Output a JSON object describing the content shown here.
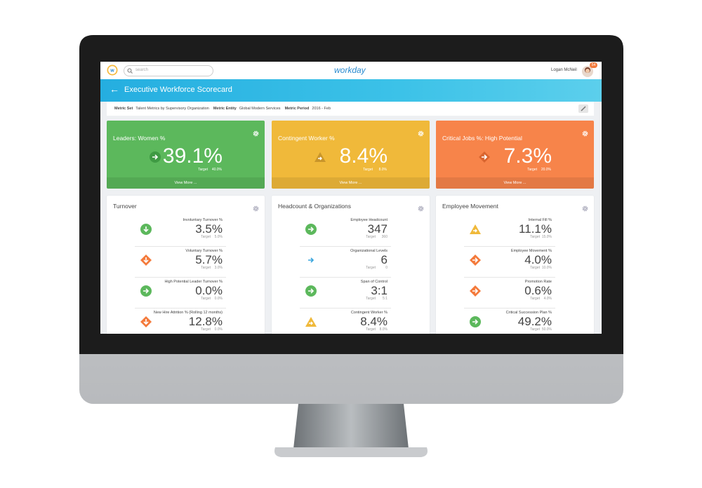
{
  "header": {
    "search_placeholder": "search",
    "logo": "workday",
    "user_name": "Logan McNeil",
    "notification_count": "54"
  },
  "page_title": "Executive Workforce Scorecard",
  "filters": [
    {
      "label": "Metric Set",
      "value": "Talent Metrics by Supervisory Organization"
    },
    {
      "label": "Metric Entity",
      "value": "Global Modern Services"
    },
    {
      "label": "Metric Period",
      "value": "2016 - Feb"
    }
  ],
  "kpis": [
    {
      "title": "Leaders: Women %",
      "value": "39.1%",
      "target_label": "Target",
      "target": "40.0%",
      "link": "View More ...",
      "color": "#5cb85c"
    },
    {
      "title": "Contingent Worker %",
      "value": "8.4%",
      "target_label": "Target",
      "target": "8.0%",
      "link": "View More ...",
      "color": "#f0b93a"
    },
    {
      "title": "Critical Jobs %: High Potential",
      "value": "7.3%",
      "target_label": "Target",
      "target": "20.0%",
      "link": "View More ...",
      "color": "#f7844a"
    }
  ],
  "panels": [
    {
      "title": "Turnover",
      "metrics": [
        {
          "name": "Involuntary Turnover %",
          "value": "3.5%",
          "target_label": "Target",
          "target": "5.0%"
        },
        {
          "name": "Voluntary Turnover %",
          "value": "5.7%",
          "target_label": "Target",
          "target": "3.0%"
        },
        {
          "name": "High Potential Leader Turnover %",
          "value": "0.0%",
          "target_label": "Target",
          "target": "0.0%"
        },
        {
          "name": "New Hire Attrition % (Rolling 12 months)",
          "value": "12.8%",
          "target_label": "Target",
          "target": "0.0%"
        }
      ]
    },
    {
      "title": "Headcount & Organizations",
      "metrics": [
        {
          "name": "Employee Headcount",
          "value": "347",
          "target_label": "Target",
          "target": "360"
        },
        {
          "name": "Organizational Levels",
          "value": "6",
          "target_label": "Target",
          "target": "0"
        },
        {
          "name": "Span of Control",
          "value": "3:1",
          "target_label": "Target",
          "target": "5:1"
        },
        {
          "name": "Contingent Worker %",
          "value": "8.4%",
          "target_label": "Target",
          "target": "8.0%"
        }
      ]
    },
    {
      "title": "Employee Movement",
      "metrics": [
        {
          "name": "Internal Fill %",
          "value": "11.1%",
          "target_label": "Target",
          "target": "15.0%"
        },
        {
          "name": "Employee Movement %",
          "value": "4.0%",
          "target_label": "Target",
          "target": "10.0%"
        },
        {
          "name": "Promotion Rate",
          "value": "0.6%",
          "target_label": "Target",
          "target": "4.0%"
        },
        {
          "name": "Critical Succession Plan %",
          "value": "49.2%",
          "target_label": "Target",
          "target": "50.0%"
        }
      ]
    }
  ]
}
